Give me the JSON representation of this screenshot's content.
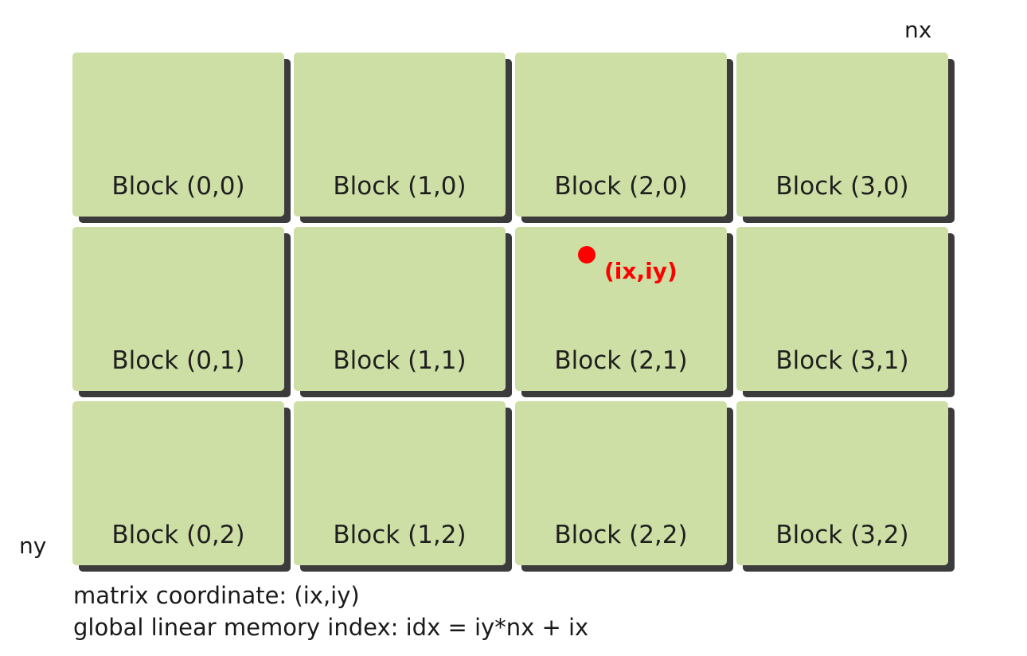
{
  "axes": {
    "x_label": "nx",
    "y_label": "ny"
  },
  "blocks": [
    [
      "Block (0,0)",
      "Block (1,0)",
      "Block (2,0)",
      "Block (3,0)"
    ],
    [
      "Block (0,1)",
      "Block (1,1)",
      "Block (2,1)",
      "Block (3,1)"
    ],
    [
      "Block (0,2)",
      "Block (1,2)",
      "Block (2,2)",
      "Block (3,2)"
    ]
  ],
  "thread": {
    "label": "(ix,iy)",
    "color": "#ff0000"
  },
  "colors": {
    "block_fill": "#cddfa5",
    "block_shadow": "#3b3b3b"
  },
  "captions": {
    "line1": "matrix coordinate: (ix,iy)",
    "line2": "global linear memory index: idx = iy*nx + ix"
  }
}
